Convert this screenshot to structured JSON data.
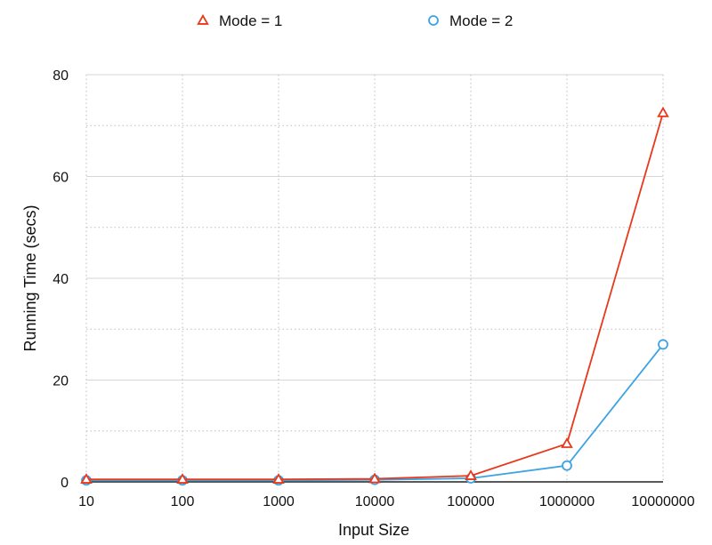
{
  "chart_data": {
    "type": "line",
    "title": "",
    "xlabel": "Input Size",
    "ylabel": "Running Time (secs)",
    "categories": [
      "10",
      "100",
      "1000",
      "10000",
      "100000",
      "1000000",
      "10000000"
    ],
    "ylim": [
      0,
      80
    ],
    "yticks": [
      "0",
      "20",
      "40",
      "60",
      "80"
    ],
    "grid": true,
    "legend_position": "top",
    "series": [
      {
        "name": "Mode = 1",
        "color": "#e8391d",
        "marker": "triangle",
        "values": [
          0.5,
          0.5,
          0.5,
          0.6,
          1.2,
          7.5,
          72.5
        ]
      },
      {
        "name": "Mode = 2",
        "color": "#3ea3e3",
        "marker": "circle",
        "values": [
          0.3,
          0.3,
          0.3,
          0.4,
          0.7,
          3.2,
          27.0
        ]
      }
    ]
  }
}
